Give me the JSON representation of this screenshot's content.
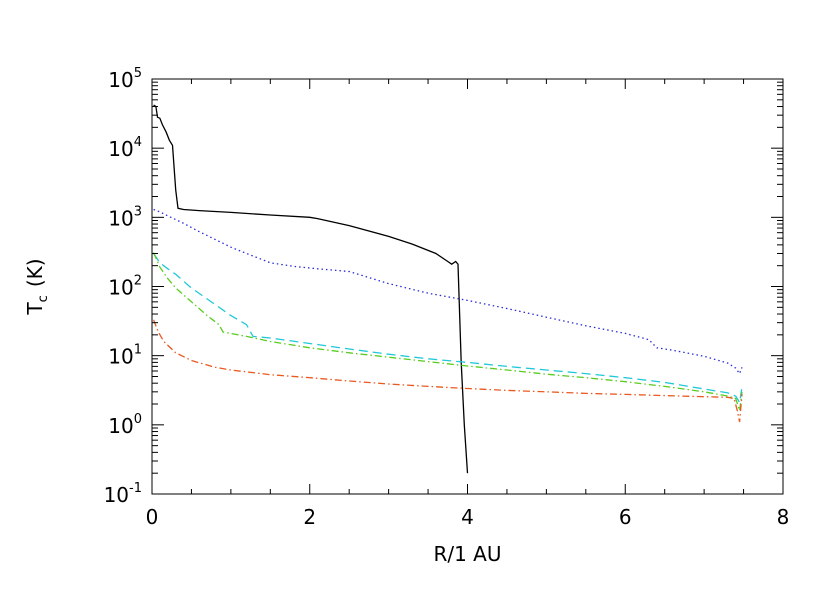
{
  "chart_data": {
    "type": "line",
    "xlabel": "R/1 AU",
    "ylabel": {
      "main": "T",
      "subscript": "c",
      "unit": "(K)"
    },
    "xlim": [
      0,
      8
    ],
    "ylim": [
      0.1,
      100000
    ],
    "yscale": "log",
    "grid": false,
    "legend": "none",
    "x_ticks": [
      {
        "value": 0,
        "label": "0"
      },
      {
        "value": 2,
        "label": "2"
      },
      {
        "value": 4,
        "label": "4"
      },
      {
        "value": 6,
        "label": "6"
      },
      {
        "value": 8,
        "label": "8"
      }
    ],
    "y_ticks": [
      {
        "value": 0.1,
        "base": "10",
        "exp": "-1"
      },
      {
        "value": 1,
        "base": "10",
        "exp": "0"
      },
      {
        "value": 10,
        "base": "10",
        "exp": "1"
      },
      {
        "value": 100,
        "base": "10",
        "exp": "2"
      },
      {
        "value": 1000,
        "base": "10",
        "exp": "3"
      },
      {
        "value": 10000,
        "base": "10",
        "exp": "4"
      },
      {
        "value": 100000,
        "base": "10",
        "exp": "5"
      }
    ],
    "series": [
      {
        "color": "#000000",
        "dash": "solid",
        "points": [
          [
            0.02,
            42000
          ],
          [
            0.05,
            40000
          ],
          [
            0.07,
            28000
          ],
          [
            0.1,
            27000
          ],
          [
            0.13,
            22000
          ],
          [
            0.18,
            17000
          ],
          [
            0.22,
            13000
          ],
          [
            0.26,
            11000
          ],
          [
            0.3,
            2500
          ],
          [
            0.33,
            1350
          ],
          [
            0.4,
            1300
          ],
          [
            0.6,
            1250
          ],
          [
            1.0,
            1180
          ],
          [
            1.5,
            1080
          ],
          [
            2.0,
            1000
          ],
          [
            2.1,
            960
          ],
          [
            2.5,
            760
          ],
          [
            3.0,
            530
          ],
          [
            3.3,
            410
          ],
          [
            3.6,
            300
          ],
          [
            3.75,
            230
          ],
          [
            3.8,
            210
          ],
          [
            3.85,
            230
          ],
          [
            3.88,
            210
          ],
          [
            3.92,
            8
          ],
          [
            3.96,
            1
          ],
          [
            4.0,
            0.2
          ]
        ]
      },
      {
        "color": "#2a2ad8",
        "dash": "dotted",
        "points": [
          [
            0.02,
            1300
          ],
          [
            0.1,
            1200
          ],
          [
            0.2,
            1050
          ],
          [
            0.4,
            820
          ],
          [
            0.6,
            620
          ],
          [
            0.8,
            480
          ],
          [
            1.0,
            370
          ],
          [
            1.2,
            300
          ],
          [
            1.5,
            220
          ],
          [
            1.8,
            195
          ],
          [
            2.1,
            180
          ],
          [
            2.5,
            165
          ],
          [
            3.0,
            110
          ],
          [
            3.5,
            80
          ],
          [
            4.0,
            63
          ],
          [
            4.5,
            48
          ],
          [
            5.0,
            36
          ],
          [
            5.5,
            27
          ],
          [
            6.0,
            21
          ],
          [
            6.3,
            17
          ],
          [
            6.4,
            13
          ],
          [
            6.6,
            12
          ],
          [
            7.0,
            9.8
          ],
          [
            7.3,
            7.8
          ],
          [
            7.4,
            6.6
          ],
          [
            7.45,
            5.5
          ],
          [
            7.48,
            6.8
          ]
        ]
      },
      {
        "color": "#20c8d8",
        "dash": "dashed",
        "points": [
          [
            0.02,
            300
          ],
          [
            0.1,
            220
          ],
          [
            0.2,
            180
          ],
          [
            0.3,
            150
          ],
          [
            0.5,
            95
          ],
          [
            0.8,
            55
          ],
          [
            1.0,
            38
          ],
          [
            1.2,
            28
          ],
          [
            1.28,
            19
          ],
          [
            1.5,
            18
          ],
          [
            2.0,
            15
          ],
          [
            2.5,
            12.5
          ],
          [
            3.0,
            10.5
          ],
          [
            3.5,
            9
          ],
          [
            4.0,
            8
          ],
          [
            4.5,
            7
          ],
          [
            5.0,
            6.2
          ],
          [
            5.5,
            5.5
          ],
          [
            6.0,
            4.8
          ],
          [
            6.5,
            4.1
          ],
          [
            7.0,
            3.3
          ],
          [
            7.3,
            2.9
          ],
          [
            7.4,
            2.6
          ],
          [
            7.45,
            2.1
          ],
          [
            7.48,
            3.5
          ]
        ]
      },
      {
        "color": "#58cc20",
        "dash": "dash-dot",
        "points": [
          [
            0.02,
            310
          ],
          [
            0.1,
            190
          ],
          [
            0.2,
            130
          ],
          [
            0.3,
            95
          ],
          [
            0.5,
            60
          ],
          [
            0.7,
            38
          ],
          [
            0.85,
            28
          ],
          [
            0.9,
            22
          ],
          [
            1.2,
            19
          ],
          [
            1.5,
            16
          ],
          [
            2.0,
            13
          ],
          [
            2.5,
            11
          ],
          [
            3.0,
            9.5
          ],
          [
            3.5,
            8.2
          ],
          [
            4.0,
            7.1
          ],
          [
            4.5,
            6.2
          ],
          [
            5.0,
            5.4
          ],
          [
            5.5,
            4.8
          ],
          [
            6.0,
            4.2
          ],
          [
            6.5,
            3.6
          ],
          [
            7.0,
            3.0
          ],
          [
            7.3,
            2.6
          ],
          [
            7.4,
            2.4
          ],
          [
            7.45,
            1.6
          ],
          [
            7.48,
            3.0
          ]
        ]
      },
      {
        "color": "#e85a20",
        "dash": "dash-dot",
        "points": [
          [
            0.02,
            33
          ],
          [
            0.08,
            22
          ],
          [
            0.15,
            16
          ],
          [
            0.3,
            11
          ],
          [
            0.5,
            8.5
          ],
          [
            0.8,
            6.8
          ],
          [
            1.0,
            6.2
          ],
          [
            1.5,
            5.3
          ],
          [
            2.0,
            4.8
          ],
          [
            2.5,
            4.3
          ],
          [
            3.0,
            3.9
          ],
          [
            3.5,
            3.6
          ],
          [
            4.0,
            3.35
          ],
          [
            4.5,
            3.15
          ],
          [
            5.0,
            3.0
          ],
          [
            5.5,
            2.85
          ],
          [
            6.0,
            2.75
          ],
          [
            6.5,
            2.65
          ],
          [
            7.0,
            2.55
          ],
          [
            7.3,
            2.5
          ],
          [
            7.38,
            2.4
          ],
          [
            7.42,
            1.6
          ],
          [
            7.45,
            1.1
          ],
          [
            7.48,
            2.8
          ]
        ]
      }
    ]
  }
}
